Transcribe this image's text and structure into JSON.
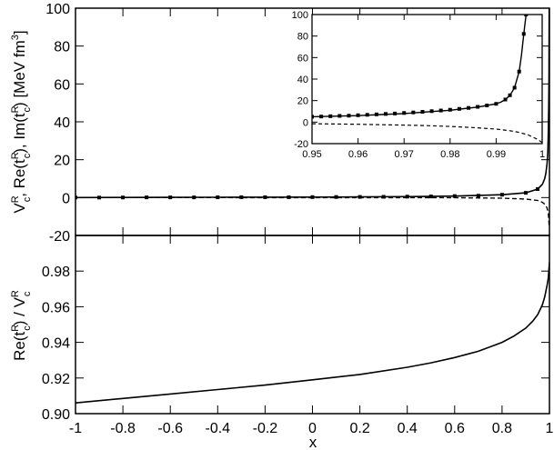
{
  "chart_data": [
    {
      "panel": "top",
      "type": "line",
      "xlim": [
        -1,
        1
      ],
      "ylim": [
        -20,
        100
      ],
      "yticks": [
        "-20",
        "0",
        "20",
        "40",
        "60",
        "80",
        "100"
      ],
      "ylabel": "V_c^R, Re(t_c^R), Im(t_c^R) [MeV fm^3]",
      "ylabel_parts": {
        "p1": "V",
        "p1sup": "R",
        "p1sub": "c",
        "p2": ", Re(t",
        "p2sup": "R",
        "p2sub": "c",
        "p3": "), Im(t",
        "p3sup": "R",
        "p3sub": "c",
        "p4": ") [MeV fm",
        "p4sup": "3",
        "p5": "]"
      },
      "series": [
        {
          "style": "solid",
          "x": [
            -1.0,
            -0.8,
            -0.6,
            -0.4,
            -0.2,
            0.0,
            0.2,
            0.4,
            0.6,
            0.8,
            0.9,
            0.95,
            0.97,
            0.98,
            0.985,
            0.99,
            0.993,
            0.995,
            0.997,
            0.998,
            0.999
          ],
          "y": [
            0.0,
            0.05,
            0.1,
            0.15,
            0.2,
            0.25,
            0.35,
            0.5,
            0.8,
            1.5,
            2.5,
            4.5,
            7.0,
            10.0,
            13.0,
            18.0,
            24.0,
            33.0,
            48.0,
            65.0,
            100.0
          ]
        },
        {
          "style": "dotted-markers",
          "x": [
            -1.0,
            -0.9,
            -0.8,
            -0.7,
            -0.6,
            -0.5,
            -0.4,
            -0.3,
            -0.2,
            -0.1,
            0.0,
            0.1,
            0.2,
            0.3,
            0.4,
            0.5,
            0.6,
            0.7,
            0.8,
            0.9,
            0.95
          ],
          "y": [
            0.0,
            0.0,
            0.05,
            0.1,
            0.1,
            0.1,
            0.15,
            0.2,
            0.2,
            0.2,
            0.25,
            0.3,
            0.35,
            0.4,
            0.5,
            0.6,
            0.8,
            1.0,
            1.5,
            2.5,
            4.5
          ]
        },
        {
          "style": "dashed",
          "x": [
            -1.0,
            0.6,
            0.8,
            0.9,
            0.95,
            0.97,
            0.98,
            0.99,
            0.995,
            0.999
          ],
          "y": [
            0.0,
            -0.1,
            -0.3,
            -0.8,
            -1.5,
            -2.5,
            -3.5,
            -5.5,
            -8.0,
            -15.0
          ]
        }
      ],
      "inset": {
        "xlim": [
          0.95,
          1.0
        ],
        "ylim": [
          -20,
          100
        ],
        "xticks": [
          "0.95",
          "0.96",
          "0.97",
          "0.98",
          "0.99",
          "1"
        ],
        "yticks": [
          "-20",
          "0",
          "20",
          "40",
          "60",
          "80",
          "100"
        ],
        "series": [
          {
            "style": "solid",
            "x": [
              0.95,
              0.955,
              0.96,
              0.965,
              0.97,
              0.975,
              0.98,
              0.983,
              0.986,
              0.988,
              0.99,
              0.991,
              0.992,
              0.993,
              0.994,
              0.995,
              0.9955,
              0.996,
              0.9965
            ],
            "y": [
              5.0,
              5.5,
              6.0,
              7.0,
              8.0,
              9.5,
              11.0,
              12.5,
              14.0,
              15.5,
              17.0,
              18.5,
              21.0,
              25.0,
              32.0,
              47.0,
              62.0,
              82.0,
              100.0
            ]
          },
          {
            "style": "square-markers",
            "x": [
              0.95,
              0.952,
              0.954,
              0.956,
              0.958,
              0.96,
              0.962,
              0.964,
              0.966,
              0.968,
              0.97,
              0.972,
              0.974,
              0.976,
              0.978,
              0.98,
              0.982,
              0.984,
              0.986,
              0.988,
              0.99,
              0.992,
              0.993,
              0.994,
              0.995,
              0.996,
              0.9965
            ],
            "y": [
              5.0,
              5.2,
              5.5,
              5.8,
              6.0,
              6.4,
              6.8,
              7.2,
              7.6,
              8.0,
              8.5,
              9.0,
              9.6,
              10.2,
              10.8,
              11.5,
              12.3,
              13.2,
              14.2,
              15.5,
              17.0,
              21.0,
              25.0,
              32.0,
              47.0,
              82.0,
              100.0
            ]
          },
          {
            "style": "dashed",
            "x": [
              0.95,
              0.96,
              0.97,
              0.975,
              0.98,
              0.985,
              0.99,
              0.993,
              0.995,
              0.997,
              0.999,
              1.0
            ],
            "y": [
              -1.5,
              -2.0,
              -2.8,
              -3.3,
              -4.0,
              -5.0,
              -6.5,
              -8.0,
              -9.5,
              -12.0,
              -16.0,
              -19.0
            ]
          }
        ]
      }
    },
    {
      "panel": "bottom",
      "type": "line",
      "xlim": [
        -1,
        1
      ],
      "ylim": [
        0.9,
        1.0
      ],
      "xticks": [
        "-1",
        "-0.8",
        "-0.6",
        "-0.4",
        "-0.2",
        "0",
        "0.2",
        "0.4",
        "0.6",
        "0.8",
        "1"
      ],
      "yticks": [
        "0.90",
        "0.92",
        "0.94",
        "0.96",
        "0.98"
      ],
      "xlabel": "x",
      "ylabel": "Re(t_c^R) / V_c^R",
      "ylabel_parts": {
        "a": "Re(t",
        "asup": "R",
        "asub": "c",
        "b": ") / V",
        "bsup": "R",
        "bsub": "c"
      },
      "series": [
        {
          "style": "solid",
          "x": [
            -1.0,
            -0.8,
            -0.6,
            -0.4,
            -0.2,
            0.0,
            0.2,
            0.4,
            0.5,
            0.6,
            0.7,
            0.8,
            0.85,
            0.9,
            0.93,
            0.95,
            0.97,
            0.98,
            0.99,
            0.995,
            1.0
          ],
          "y": [
            0.906,
            0.9085,
            0.911,
            0.9135,
            0.916,
            0.919,
            0.922,
            0.926,
            0.9285,
            0.9315,
            0.935,
            0.94,
            0.9435,
            0.948,
            0.952,
            0.9555,
            0.961,
            0.9655,
            0.972,
            0.976,
            0.985
          ]
        }
      ]
    }
  ]
}
